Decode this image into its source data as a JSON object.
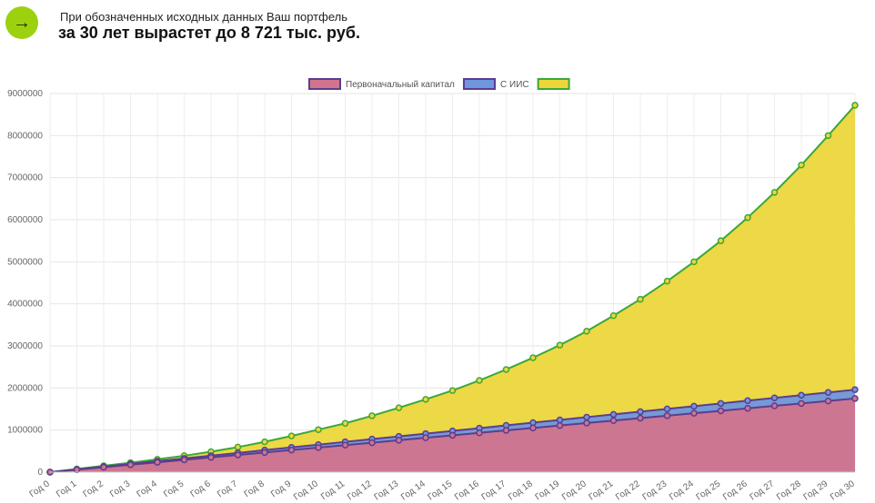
{
  "header": {
    "arrow_icon": "arrow-right-icon",
    "arrow_glyph": "→",
    "accent_color": "#9cd10f",
    "subtitle": "При обозначенных исходных данных Ваш портфель",
    "headline": "за 30 лет вырастет до 8 721 тыс. руб."
  },
  "chart_data": {
    "type": "area",
    "stacked": false,
    "legend_position": "top",
    "grid": true,
    "ylim": [
      0,
      9000000
    ],
    "yticks": [
      0,
      1000000,
      2000000,
      3000000,
      4000000,
      5000000,
      6000000,
      7000000,
      8000000,
      9000000
    ],
    "categories": [
      "Год 0",
      "Год 1",
      "Год 2",
      "Год 3",
      "Год 4",
      "Год 5",
      "Год 6",
      "Год 7",
      "Год 8",
      "Год 9",
      "Год 10",
      "Год 11",
      "Год 12",
      "Год 13",
      "Год 14",
      "Год 15",
      "Год 16",
      "Год 17",
      "Год 18",
      "Год 19",
      "Год 20",
      "Год 21",
      "Год 22",
      "Год 23",
      "Год 24",
      "Год 25",
      "Год 26",
      "Год 27",
      "Год 28",
      "Год 29",
      "Год 30"
    ],
    "series": [
      {
        "name": "Первоначальный капитал",
        "fill": "#d2748e",
        "line": "#5c3d8f",
        "values": [
          0,
          58000,
          117000,
          175000,
          233000,
          292000,
          350000,
          408000,
          467000,
          525000,
          583000,
          642000,
          700000,
          758000,
          817000,
          875000,
          933000,
          992000,
          1050000,
          1108000,
          1167000,
          1225000,
          1283000,
          1342000,
          1400000,
          1458000,
          1517000,
          1575000,
          1633000,
          1692000,
          1750000
        ]
      },
      {
        "name": "С ИИС",
        "fill": "#6f97dd",
        "line": "#5c3d8f",
        "values": [
          0,
          65000,
          131000,
          196000,
          261000,
          327000,
          392000,
          457000,
          523000,
          588000,
          653000,
          719000,
          784000,
          849000,
          915000,
          980000,
          1045000,
          1111000,
          1176000,
          1241000,
          1307000,
          1372000,
          1437000,
          1503000,
          1568000,
          1633000,
          1699000,
          1764000,
          1829000,
          1895000,
          1960000
        ]
      },
      {
        "name": "",
        "fill": "#ecd63c",
        "line": "#3aa83a",
        "values": [
          0,
          75000,
          150000,
          225000,
          305000,
          390000,
          485000,
          595000,
          720000,
          860000,
          1010000,
          1160000,
          1340000,
          1530000,
          1730000,
          1940000,
          2180000,
          2440000,
          2720000,
          3020000,
          3350000,
          3720000,
          4110000,
          4540000,
          5000000,
          5500000,
          6050000,
          6650000,
          7300000,
          8000000,
          8721000
        ]
      }
    ]
  }
}
